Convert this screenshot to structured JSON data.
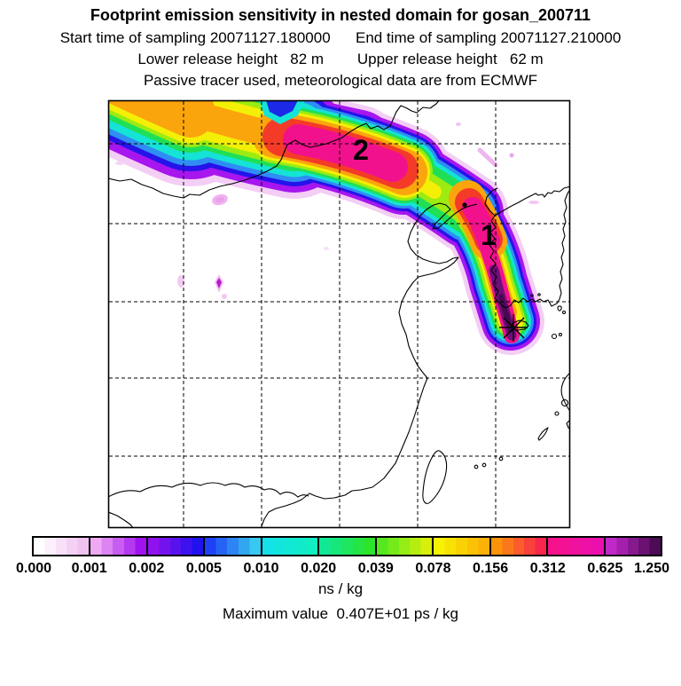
{
  "header": {
    "title": "Footprint emission sensitivity in nested domain for gosan_200711",
    "sampling_line": "Start time of sampling 20071127.180000      End time of sampling 20071127.210000",
    "start_time_label": "Start time of sampling",
    "start_time": "20071127.180000",
    "end_time_label": "End time of sampling",
    "end_time": "20071127.210000",
    "heights_line": "Lower release height   82 m        Upper release height   62 m",
    "lower_release_height": "82 m",
    "upper_release_height": "62 m",
    "tracer_line": "Passive tracer used, meteorological data are from ECMWF"
  },
  "map": {
    "markers": [
      {
        "label": "1"
      },
      {
        "label": "2"
      }
    ],
    "station_marker": "star-asterisk at Gosan (Jeju island)",
    "grid": {
      "vertical_lines": 5,
      "horizontal_lines": 5,
      "style": "dashed"
    }
  },
  "colorbar": {
    "ticks": [
      "0.000",
      "0.001",
      "0.002",
      "0.005",
      "0.010",
      "0.020",
      "0.039",
      "0.078",
      "0.156",
      "0.312",
      "0.625",
      "1.250"
    ],
    "unit": "ns / kg",
    "segments": [
      {
        "from": "#ffffff",
        "to": "#f0c2f0"
      },
      {
        "from": "#efa9f2",
        "to": "#a013f0"
      },
      {
        "from": "#9012ee",
        "to": "#2012ee"
      },
      {
        "from": "#1f41f5",
        "to": "#38c8f0"
      },
      {
        "from": "#14e2e8",
        "to": "#11eec1"
      },
      {
        "from": "#10e896",
        "to": "#2ce42a"
      },
      {
        "from": "#55e81f",
        "to": "#d6ef0b"
      },
      {
        "from": "#f6f201",
        "to": "#fcb108"
      },
      {
        "from": "#fb930b",
        "to": "#f8264b"
      },
      {
        "from": "#f5128b",
        "to": "#eb0fb0"
      },
      {
        "from": "#c127c9",
        "to": "#4d0a55"
      }
    ]
  },
  "footer": {
    "max_label": "Maximum value  0.407E+01 ps / kg",
    "max_value": "0.407E+01",
    "max_unit": "ps / kg"
  },
  "chart_data": {
    "type": "heatmap",
    "title": "Footprint emission sensitivity in nested domain for gosan_200711",
    "description": "Geographic footprint plume over East Asia extending from Gosan (Jeju) north over Korea then west-northwest across northeast China, exiting the top-left of the nested domain. Peak sensitivity (dark purple, 0.625-1.25 ns/kg) along the Korea limb near the release point; secondary magenta maxima at numbered receptors 1 (near west Korea coast) and 2 (northeast China).",
    "levels_ns_per_kg": [
      0.0,
      0.001,
      0.002,
      0.005,
      0.01,
      0.02,
      0.039,
      0.078,
      0.156,
      0.312,
      0.625,
      1.25
    ],
    "level_colors": [
      "#ffffff",
      "#a013f0",
      "#2012ee",
      "#38c8f0",
      "#11eec1",
      "#2ce42a",
      "#d6ef0b",
      "#fcb108",
      "#f8264b",
      "#eb0fb0",
      "#4d0a55"
    ],
    "colorbar_unit": "ns / kg",
    "maximum_value": "0.407E+01 ps / kg",
    "sampling_start": "20071127.180000",
    "sampling_end": "20071127.210000",
    "lower_release_height_m": 82,
    "upper_release_height_m": 62,
    "meteo_source": "ECMWF",
    "tracer": "Passive tracer",
    "markers": [
      {
        "label": "1",
        "note": "receptor/region marker on plume over west Korea"
      },
      {
        "label": "2",
        "note": "receptor/region marker on plume over northeast China"
      },
      {
        "label": "star",
        "note": "release location Gosan, Jeju"
      }
    ],
    "legend_position": "bottom",
    "grid": "dashed lat/lon graticule, unlabeled"
  }
}
